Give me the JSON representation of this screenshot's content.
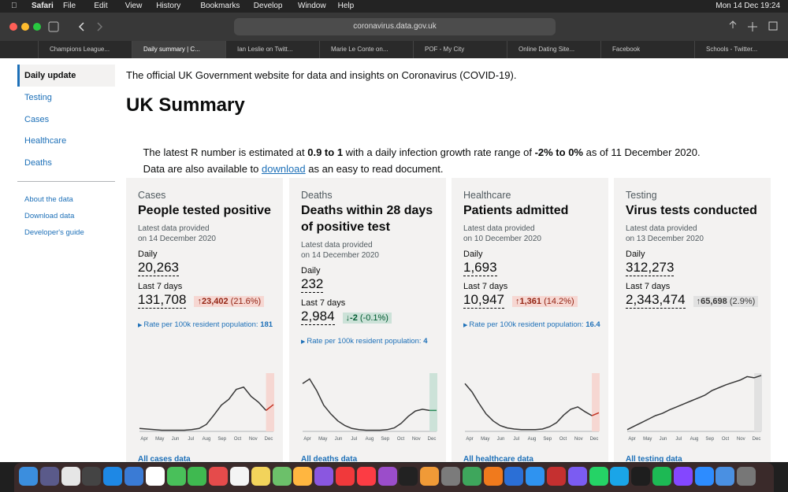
{
  "menubar": {
    "app": "Safari",
    "menus": [
      "File",
      "Edit",
      "View",
      "History",
      "Bookmarks",
      "Develop",
      "Window",
      "Help"
    ],
    "clock": "Mon 14 Dec  19:24"
  },
  "browser": {
    "url": "coronavirus.data.gov.uk",
    "tabs": [
      "Champions League...",
      "Daily summary | C...",
      "Ian Leslie on Twitt...",
      "Marie Le Conte on...",
      "POF - My City",
      "Online Dating Site...",
      "Facebook",
      "Schools - Twitter..."
    ],
    "active_tab": 1
  },
  "sidebar": {
    "nav": [
      "Daily update",
      "Testing",
      "Cases",
      "Healthcare",
      "Deaths"
    ],
    "selected": 0,
    "links": [
      "About the data",
      "Download data",
      "Developer's guide"
    ]
  },
  "main": {
    "intro": "The official UK Government website for data and insights on Coronavirus (COVID-19).",
    "heading": "UK Summary",
    "r_parts": [
      "The latest R number is estimated at ",
      "0.9 to 1",
      " with a daily infection growth rate range of ",
      "-2% to 0%",
      " as of 11 December 2020."
    ],
    "download_parts": [
      "Data are also available to ",
      "download",
      " as an easy to read document."
    ]
  },
  "chart_months": [
    "Apr",
    "May",
    "Jun",
    "Jul",
    "Aug",
    "Sep",
    "Oct",
    "Nov",
    "Dec"
  ],
  "cards": [
    {
      "category": "Cases",
      "title": "People tested positive",
      "latest": "Latest data provided",
      "date": "on 14 December 2020",
      "daily_label": "Daily",
      "daily": "20,263",
      "week_label": "Last 7 days",
      "week": "131,708",
      "change": "23,402",
      "change_pct": "(21.6%)",
      "badge_color": "#f6d7d2",
      "change_color": "#942514",
      "rate_label": "Rate per 100k resident population: ",
      "rate": "181",
      "trend": [
        5,
        4,
        3,
        2,
        2,
        2,
        2,
        3,
        5,
        12,
        28,
        45,
        55,
        72,
        76,
        60,
        50,
        36,
        46
      ],
      "line_color": "#383838",
      "highlight": "#f6d7d2",
      "highlight_line": "#c43323",
      "link": "All cases data"
    },
    {
      "category": "Deaths",
      "title": "Deaths within 28 days of positive test",
      "latest": "Latest data provided",
      "date": "on 14 December 2020",
      "daily_label": "Daily",
      "daily": "232",
      "week_label": "Last 7 days",
      "week": "2,984",
      "change": "-2",
      "change_pct": "(-0.1%)",
      "badge_color": "#cce2d8",
      "change_color": "#005a30",
      "rate_label": "Rate per 100k resident population: ",
      "rate": "4",
      "trend": [
        82,
        90,
        70,
        45,
        30,
        18,
        10,
        5,
        3,
        2,
        2,
        2,
        3,
        6,
        14,
        26,
        35,
        38,
        36,
        36
      ],
      "line_color": "#383838",
      "highlight": "#cce2d8",
      "highlight_line": "#2d8a5a",
      "link": "All deaths data"
    },
    {
      "category": "Healthcare",
      "title": "Patients admitted",
      "latest": "Latest data provided",
      "date": "on 10 December 2020",
      "daily_label": "Daily",
      "daily": "1,693",
      "week_label": "Last 7 days",
      "week": "10,947",
      "change": "1,361",
      "change_pct": "(14.2%)",
      "badge_color": "#f6d7d2",
      "change_color": "#942514",
      "rate_label": "Rate per 100k resident population: ",
      "rate": "16.4",
      "trend": [
        82,
        68,
        48,
        30,
        18,
        10,
        6,
        4,
        3,
        3,
        3,
        4,
        8,
        15,
        28,
        38,
        42,
        34,
        27,
        32
      ],
      "line_color": "#383838",
      "highlight": "#f6d7d2",
      "highlight_line": "#c43323",
      "link": "All healthcare data"
    },
    {
      "category": "Testing",
      "title": "Virus tests conducted",
      "latest": "Latest data provided",
      "date": "on 13 December 2020",
      "daily_label": "Daily",
      "daily": "312,273",
      "week_label": "Last 7 days",
      "week": "2,343,474",
      "change": "65,698",
      "change_pct": "(2.9%)",
      "badge_color": "#e1e1e1",
      "change_color": "#383838",
      "trend": [
        3,
        9,
        15,
        21,
        27,
        31,
        37,
        42,
        47,
        52,
        57,
        62,
        70,
        75,
        80,
        84,
        88,
        94,
        92,
        96
      ],
      "line_color": "#383838",
      "highlight": "#e1e1e1",
      "highlight_line": "#383838",
      "link": "All testing data"
    }
  ]
}
